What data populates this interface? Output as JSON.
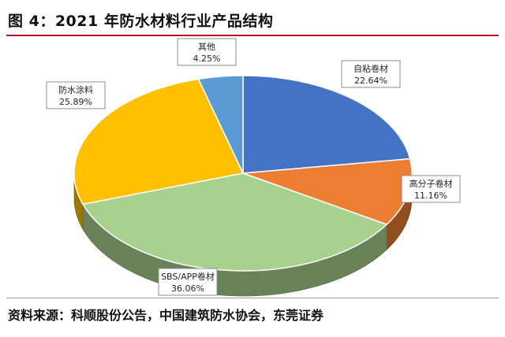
{
  "header": {
    "title": "图 4：2021 年防水材料行业产品结构"
  },
  "footer": {
    "source": "资料来源：科顺股份公告，中国建筑防水协会，东莞证券"
  },
  "chart_data": {
    "type": "pie",
    "title": "图 4：2021 年防水材料行业产品结构",
    "style": "3d",
    "labels": [
      "自粘卷材",
      "高分子卷材",
      "SBS/APP卷材",
      "防水涂料",
      "其他"
    ],
    "values": [
      22.64,
      11.16,
      36.06,
      25.89,
      4.25
    ],
    "display_values": [
      "22.64%",
      "11.16%",
      "36.06%",
      "25.89%",
      "4.25%"
    ],
    "colors": [
      "#4472c4",
      "#ed7d31",
      "#a9d18e",
      "#ffc000",
      "#5b9bd5"
    ],
    "legend": "none"
  }
}
